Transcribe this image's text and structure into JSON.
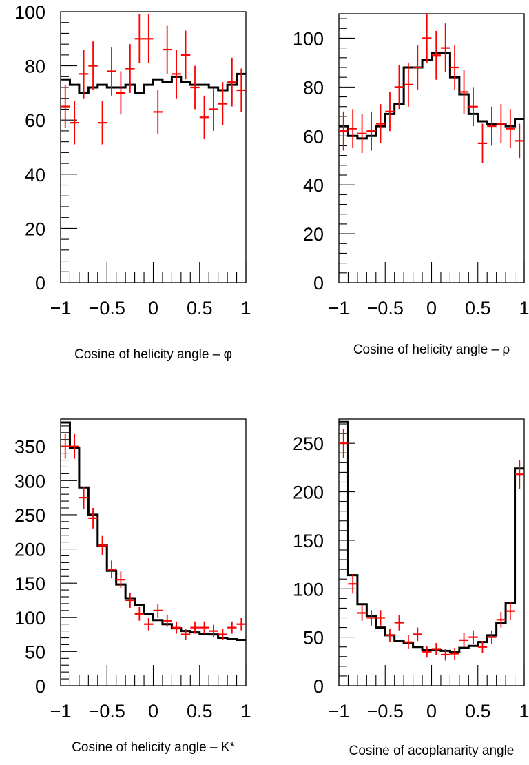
{
  "chart_data": [
    {
      "type": "histogram",
      "xlabel": "Cosine of helicity angle – φ",
      "ylabel": "",
      "xlim": [
        -1,
        1
      ],
      "ylim": [
        0,
        100
      ],
      "x_ticks": [
        -1,
        -0.5,
        0,
        0.5,
        1
      ],
      "x_tick_labels": [
        "−1",
        "−0.5",
        "0",
        "0.5",
        "1"
      ],
      "y_ticks": [
        0,
        20,
        40,
        60,
        80,
        100
      ],
      "y_tick_labels": [
        "0",
        "20",
        "40",
        "60",
        "80",
        "100"
      ],
      "bin_edges": [
        -1,
        -0.9,
        -0.8,
        -0.7,
        -0.6,
        -0.5,
        -0.4,
        -0.3,
        -0.2,
        -0.1,
        0,
        0.1,
        0.2,
        0.3,
        0.4,
        0.5,
        0.6,
        0.7,
        0.8,
        0.9,
        1
      ],
      "series": [
        {
          "style": "step",
          "color": "#000000",
          "values": [
            75,
            73,
            70,
            72,
            73,
            72,
            72,
            73,
            70,
            73,
            75,
            74,
            76,
            74,
            73,
            73,
            72,
            71,
            73,
            77
          ]
        },
        {
          "style": "errorbar",
          "color": "#ff0000",
          "x": [
            -0.95,
            -0.85,
            -0.75,
            -0.65,
            -0.55,
            -0.45,
            -0.35,
            -0.25,
            -0.15,
            -0.05,
            0.05,
            0.15,
            0.25,
            0.35,
            0.45,
            0.55,
            0.65,
            0.75,
            0.85,
            0.95
          ],
          "y": [
            65,
            59,
            77,
            80,
            59,
            78,
            70,
            79,
            90,
            90,
            63,
            86,
            77,
            84,
            72,
            61,
            64,
            66,
            74,
            71
          ],
          "yerr": [
            8,
            8,
            9,
            9,
            8,
            9,
            8,
            9,
            9,
            9,
            8,
            9,
            9,
            9,
            8,
            8,
            8,
            8,
            9,
            8
          ]
        }
      ]
    },
    {
      "type": "histogram",
      "xlabel": "Cosine of helicity angle – ρ",
      "ylabel": "",
      "xlim": [
        -1,
        1
      ],
      "ylim": [
        0,
        110
      ],
      "x_ticks": [
        -1,
        -0.5,
        0,
        0.5,
        1
      ],
      "x_tick_labels": [
        "−1",
        "−0.5",
        "0",
        "0.5",
        "1"
      ],
      "y_ticks": [
        0,
        20,
        40,
        60,
        80,
        100
      ],
      "y_tick_labels": [
        "0",
        "20",
        "40",
        "60",
        "80",
        "100"
      ],
      "bin_edges": [
        -1,
        -0.9,
        -0.8,
        -0.7,
        -0.6,
        -0.5,
        -0.4,
        -0.3,
        -0.2,
        -0.1,
        0,
        0.1,
        0.2,
        0.3,
        0.4,
        0.5,
        0.6,
        0.7,
        0.8,
        0.9,
        1
      ],
      "series": [
        {
          "style": "step",
          "color": "#000000",
          "values": [
            64,
            60,
            59,
            60,
            64,
            69,
            73,
            88,
            88,
            91,
            94,
            94,
            84,
            77,
            69,
            66,
            65,
            65,
            64,
            67
          ]
        },
        {
          "style": "errorbar",
          "color": "#ff0000",
          "x": [
            -0.95,
            -0.85,
            -0.75,
            -0.65,
            -0.55,
            -0.45,
            -0.35,
            -0.25,
            -0.15,
            -0.05,
            0.05,
            0.15,
            0.25,
            0.35,
            0.45,
            0.55,
            0.65,
            0.75,
            0.85,
            0.95
          ],
          "y": [
            62,
            63,
            61,
            62,
            65,
            70,
            80,
            81,
            88,
            100,
            93,
            96,
            88,
            78,
            72,
            57,
            64,
            65,
            63,
            58
          ],
          "yerr": [
            8,
            8,
            8,
            8,
            8,
            8,
            9,
            9,
            9,
            10,
            10,
            10,
            9,
            9,
            8,
            8,
            8,
            8,
            8,
            7
          ]
        }
      ]
    },
    {
      "type": "histogram",
      "xlabel": "Cosine of helicity angle – K*",
      "ylabel": "",
      "xlim": [
        -1,
        1
      ],
      "ylim": [
        0,
        390
      ],
      "x_ticks": [
        -1,
        -0.5,
        0,
        0.5,
        1
      ],
      "x_tick_labels": [
        "−1",
        "−0.5",
        "0",
        "0.5",
        "1"
      ],
      "y_ticks": [
        0,
        50,
        100,
        150,
        200,
        250,
        300,
        350
      ],
      "y_tick_labels": [
        "0",
        "50",
        "100",
        "150",
        "200",
        "250",
        "300",
        "350"
      ],
      "bin_edges": [
        -1,
        -0.9,
        -0.8,
        -0.7,
        -0.6,
        -0.5,
        -0.4,
        -0.3,
        -0.2,
        -0.1,
        0,
        0.1,
        0.2,
        0.3,
        0.4,
        0.5,
        0.6,
        0.7,
        0.8,
        0.9,
        1
      ],
      "series": [
        {
          "style": "step",
          "color": "#000000",
          "values": [
            385,
            348,
            290,
            250,
            205,
            168,
            148,
            128,
            118,
            105,
            96,
            90,
            84,
            80,
            78,
            76,
            75,
            70,
            68,
            67
          ]
        },
        {
          "style": "errorbar",
          "color": "#ff0000",
          "x": [
            -0.95,
            -0.85,
            -0.75,
            -0.65,
            -0.55,
            -0.45,
            -0.35,
            -0.25,
            -0.15,
            -0.05,
            0.05,
            0.15,
            0.25,
            0.35,
            0.45,
            0.55,
            0.65,
            0.75,
            0.85,
            0.95
          ],
          "y": [
            350,
            350,
            275,
            245,
            205,
            170,
            155,
            125,
            105,
            90,
            110,
            95,
            85,
            75,
            85,
            85,
            80,
            75,
            85,
            90
          ],
          "yerr": [
            18,
            18,
            16,
            15,
            14,
            13,
            12,
            11,
            10,
            9,
            10,
            9,
            9,
            8,
            9,
            9,
            9,
            8,
            9,
            9
          ]
        }
      ]
    },
    {
      "type": "histogram",
      "xlabel": "Cosine of acoplanarity angle",
      "ylabel": "",
      "xlim": [
        -1,
        1
      ],
      "ylim": [
        0,
        275
      ],
      "x_ticks": [
        -1,
        -0.5,
        0,
        0.5,
        1
      ],
      "x_tick_labels": [
        "−1",
        "−0.5",
        "0",
        "0.5",
        "1"
      ],
      "y_ticks": [
        0,
        50,
        100,
        150,
        200,
        250
      ],
      "y_tick_labels": [
        "0",
        "50",
        "100",
        "150",
        "200",
        "250"
      ],
      "bin_edges": [
        -1,
        -0.9,
        -0.8,
        -0.7,
        -0.6,
        -0.5,
        -0.4,
        -0.3,
        -0.2,
        -0.1,
        0,
        0.1,
        0.2,
        0.3,
        0.4,
        0.5,
        0.6,
        0.7,
        0.8,
        0.9,
        1
      ],
      "series": [
        {
          "style": "step",
          "color": "#000000",
          "values": [
            272,
            114,
            84,
            72,
            60,
            52,
            46,
            44,
            40,
            37,
            37,
            36,
            35,
            39,
            41,
            45,
            52,
            65,
            85,
            224
          ]
        },
        {
          "style": "errorbar",
          "color": "#ff0000",
          "x": [
            -0.95,
            -0.85,
            -0.75,
            -0.65,
            -0.55,
            -0.45,
            -0.35,
            -0.25,
            -0.15,
            -0.05,
            0.05,
            0.15,
            0.25,
            0.35,
            0.45,
            0.55,
            0.65,
            0.75,
            0.85,
            0.95
          ],
          "y": [
            250,
            105,
            75,
            70,
            70,
            52,
            65,
            45,
            53,
            35,
            38,
            32,
            33,
            47,
            50,
            40,
            50,
            68,
            77,
            218
          ],
          "yerr": [
            15,
            10,
            8,
            8,
            8,
            7,
            8,
            7,
            7,
            6,
            6,
            6,
            6,
            7,
            7,
            6,
            7,
            8,
            9,
            15
          ]
        }
      ]
    }
  ]
}
